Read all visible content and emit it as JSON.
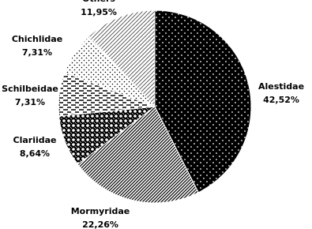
{
  "chart_data": {
    "type": "pie",
    "categories": [
      "Alestidae",
      "Mormyridae",
      "Clariidae",
      "Schilbeidae",
      "Chichlidae",
      "Others"
    ],
    "values": [
      42.52,
      22.26,
      8.64,
      7.31,
      7.31,
      11.95
    ],
    "value_labels": [
      "42,52%",
      "22,26%",
      "8,64%",
      "7,31%",
      "7,31%",
      "11,95%"
    ]
  }
}
